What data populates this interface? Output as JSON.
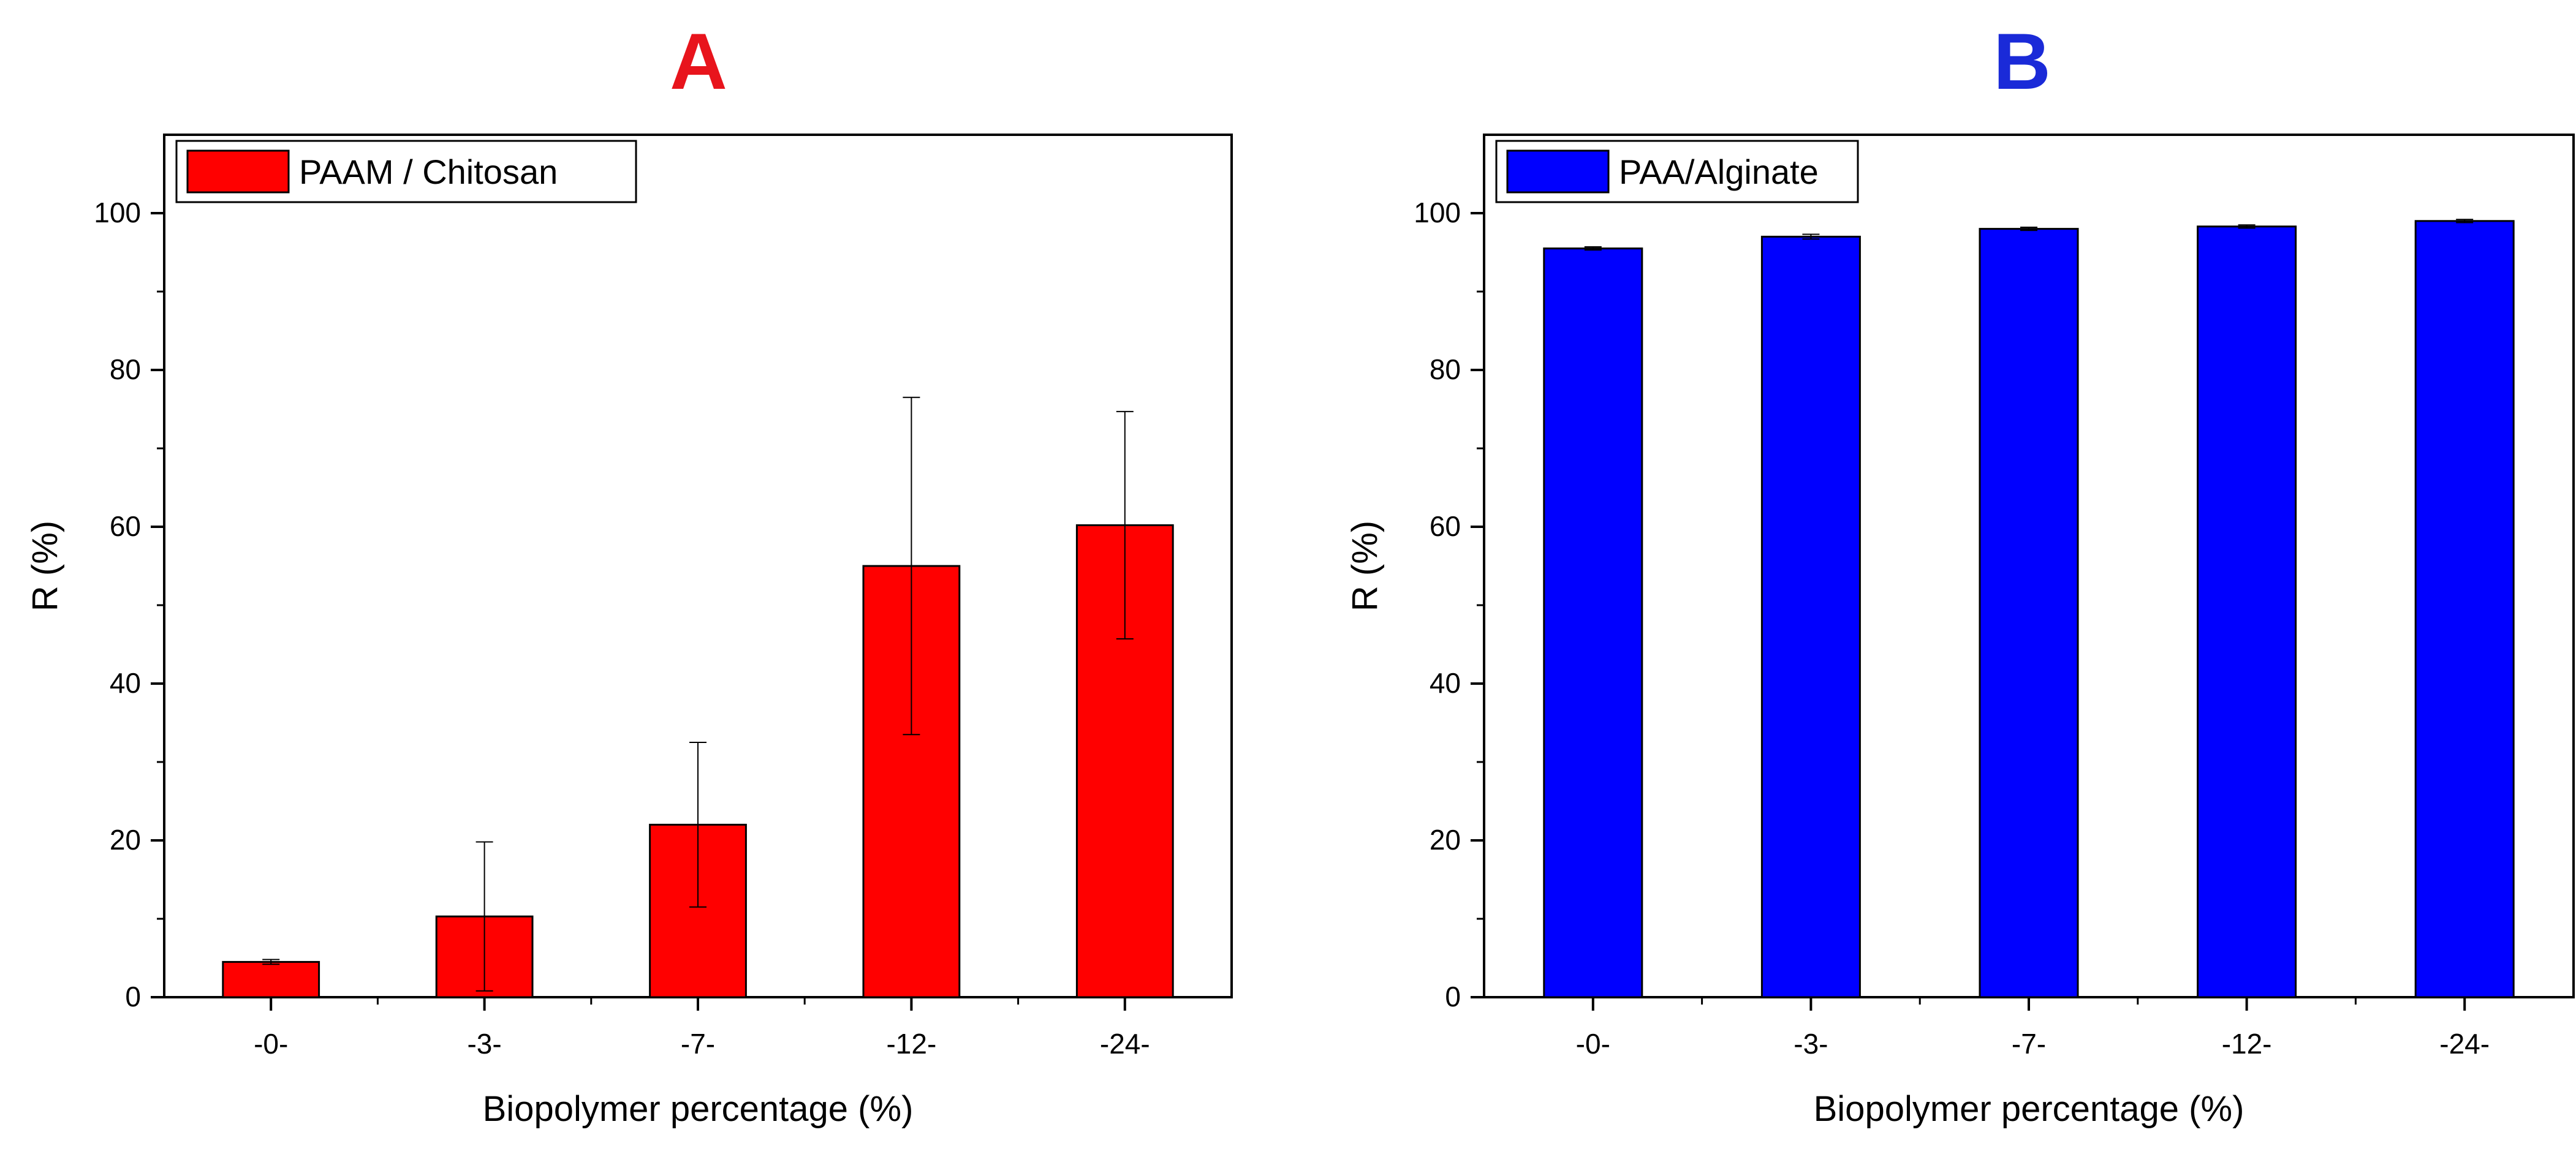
{
  "chart_data": [
    {
      "type": "bar",
      "panel_label": "A",
      "title": "",
      "categories": [
        "-0-",
        "-3-",
        "-7-",
        "-12-",
        "-24-"
      ],
      "series": [
        {
          "name": "PAAM / Chitosan",
          "values": [
            4.5,
            10.3,
            22.0,
            55.0,
            60.2
          ],
          "error": [
            0.3,
            9.5,
            10.5,
            21.5,
            14.5
          ],
          "color": "#ff0000"
        }
      ],
      "xlabel": "Biopolymer percentage (%)",
      "ylabel": "R (%)",
      "ylim": [
        0,
        110
      ],
      "yticks": [
        0,
        20,
        40,
        60,
        80,
        100
      ],
      "ytick_labels": [
        "0",
        "20",
        "40",
        "60",
        "80",
        "100"
      ],
      "legend_position": "top-left",
      "panel_label_color": "#e8141c"
    },
    {
      "type": "bar",
      "panel_label": "B",
      "title": "",
      "categories": [
        "-0-",
        "-3-",
        "-7-",
        "-12-",
        "-24-"
      ],
      "series": [
        {
          "name": "PAA/Alginate",
          "values": [
            95.5,
            97.0,
            98.0,
            98.3,
            99.0
          ],
          "error": [
            0.2,
            0.3,
            0.2,
            0.2,
            0.2
          ],
          "color": "#0000ff"
        }
      ],
      "xlabel": "Biopolymer percentage (%)",
      "ylabel": "R (%)",
      "ylim": [
        0,
        110
      ],
      "yticks": [
        0,
        20,
        40,
        60,
        80,
        100
      ],
      "ytick_labels": [
        "0",
        "20",
        "40",
        "60",
        "80",
        "100"
      ],
      "legend_position": "top-left",
      "panel_label_color": "#1a2ad8"
    }
  ]
}
